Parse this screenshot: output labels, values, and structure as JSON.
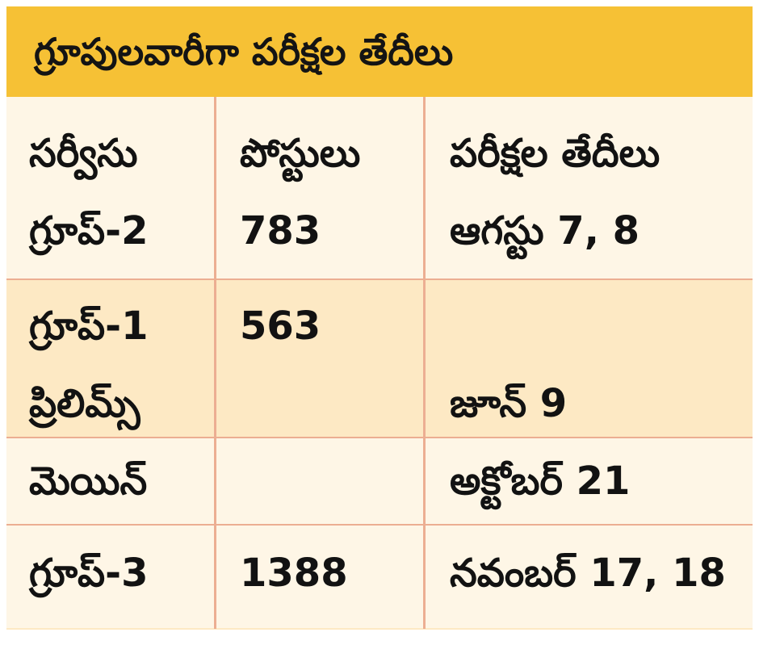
{
  "title": "గ్రూపులవారీగా పరీక్షల తేదీలు",
  "table": {
    "headers": [
      "సర్వీసు",
      "పోస్టులు",
      "పరీక్షల తేదీలు"
    ],
    "rows": [
      {
        "service": "గ్రూప్-2",
        "posts": "783",
        "date": "ఆగస్టు 7, 8"
      },
      {
        "service": "గ్రూప్-1",
        "posts": "563",
        "date": ""
      },
      {
        "service": "ప్రిలిమ్స్",
        "posts": "",
        "date": "జూన్ 9"
      },
      {
        "service": "మెయిన్",
        "posts": "",
        "date": "అక్టోబర్ 21"
      },
      {
        "service": "గ్రూప్-3",
        "posts": "1388",
        "date": "నవంబర్ 17, 18"
      }
    ]
  },
  "colors": {
    "header_bg": "#f6c135",
    "row_light": "#fef6e6",
    "row_mid": "#fde9c4",
    "divider": "#ecae92"
  }
}
